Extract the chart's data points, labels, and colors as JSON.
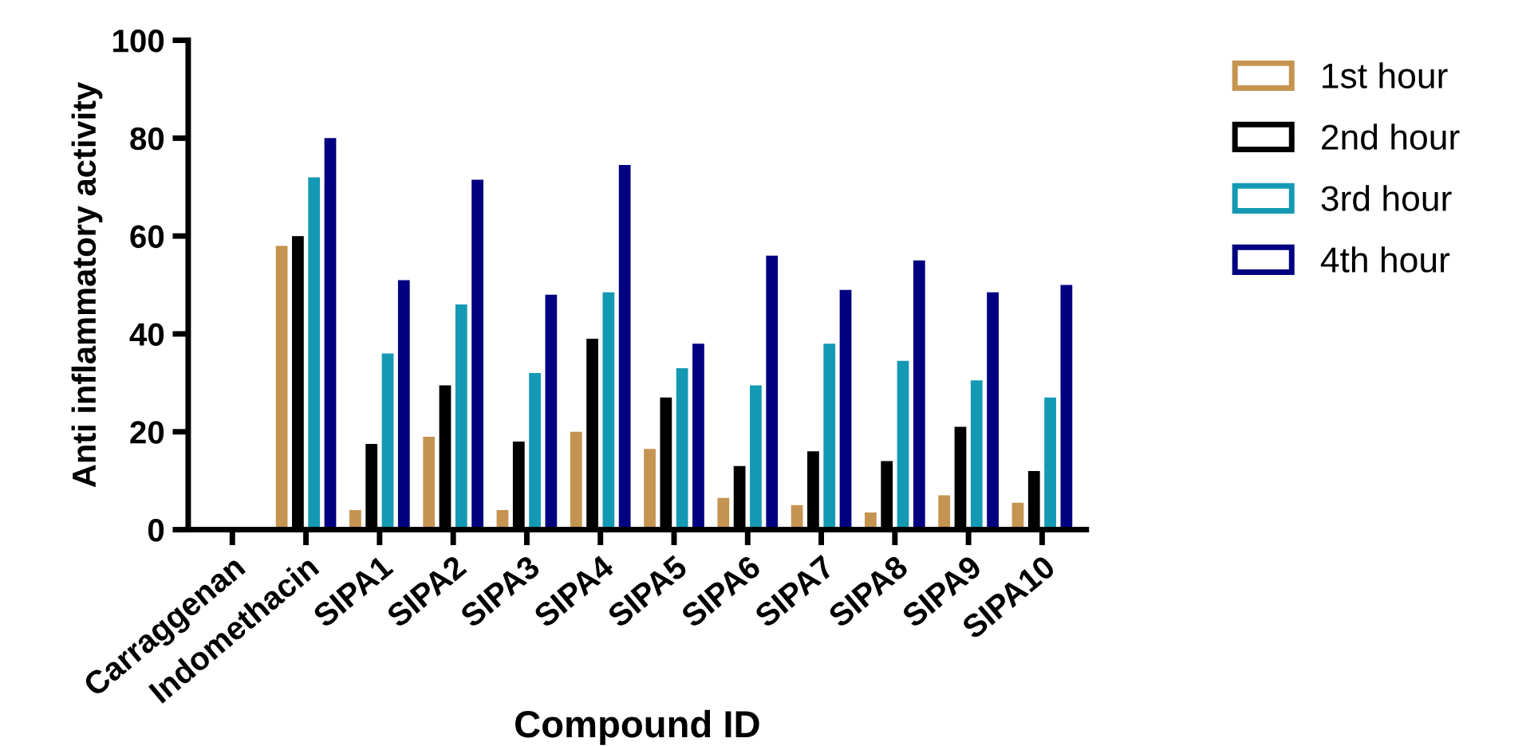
{
  "chart_data": {
    "type": "bar",
    "xlabel": "Compound ID",
    "ylabel": "Anti inflammatory activity",
    "categories": [
      "Carraggenan",
      "Indomethacin",
      "SIPA1",
      "SIPA2",
      "SIPA3",
      "SIPA4",
      "SIPA5",
      "SIPA6",
      "SIPA7",
      "SIPA8",
      "SIPA9",
      "SIPA10"
    ],
    "series": [
      {
        "name": "1st hour",
        "color": "#c49450",
        "values": [
          0,
          58,
          4,
          19,
          4,
          20,
          16.5,
          6.5,
          5,
          3.5,
          7,
          5.5
        ]
      },
      {
        "name": "2nd hour",
        "color": "#000000",
        "values": [
          0,
          60,
          17.5,
          29.5,
          18,
          39,
          27,
          13,
          16,
          14,
          21,
          12
        ]
      },
      {
        "name": "3rd hour",
        "color": "#1499b4",
        "values": [
          0,
          72,
          36,
          46,
          32,
          48.5,
          33,
          29.5,
          38,
          34.5,
          30.5,
          27
        ]
      },
      {
        "name": "4th hour",
        "color": "#000080",
        "values": [
          0,
          80,
          51,
          71.5,
          48,
          74.5,
          38,
          56,
          49,
          55,
          48.5,
          50
        ]
      }
    ],
    "ylim": [
      0,
      100
    ],
    "yticks": [
      0,
      20,
      40,
      60,
      80,
      100
    ],
    "grid": false,
    "legend": "top right"
  }
}
